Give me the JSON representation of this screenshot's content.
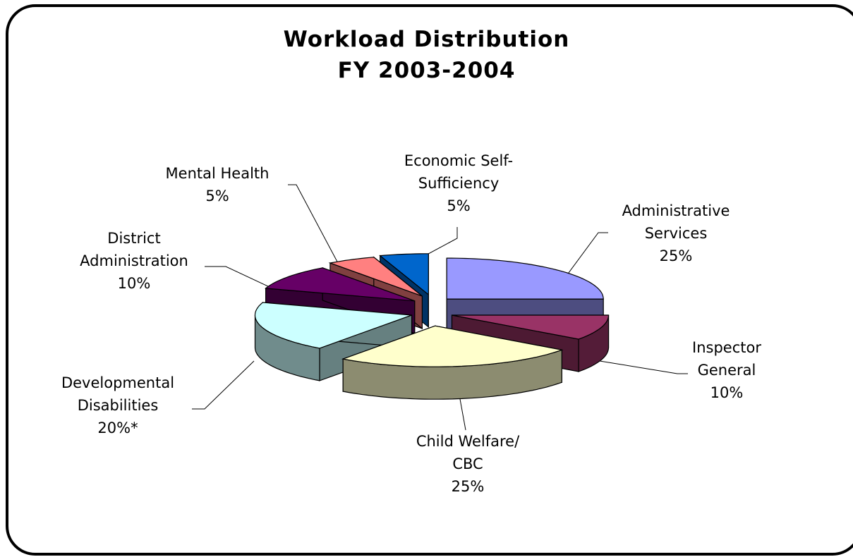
{
  "chart_data": {
    "type": "pie3d",
    "title": "Workload Distribution",
    "subtitle": "FY 2003-2004",
    "categories": [
      "Administrative Services",
      "Inspector General",
      "Child Welfare/ CBC",
      "Developmental Disabilities",
      "District Administration",
      "Mental Health",
      "Economic Self-Sufficiency"
    ],
    "values": [
      25,
      10,
      25,
      20,
      10,
      5,
      5
    ],
    "value_labels": [
      "25%",
      "10%",
      "25%",
      "20%*",
      "10%",
      "5%",
      "5%"
    ],
    "colors": [
      "#9999ff",
      "#993366",
      "#ffffcc",
      "#ccffff",
      "#660066",
      "#ff8080",
      "#0066cc"
    ]
  }
}
